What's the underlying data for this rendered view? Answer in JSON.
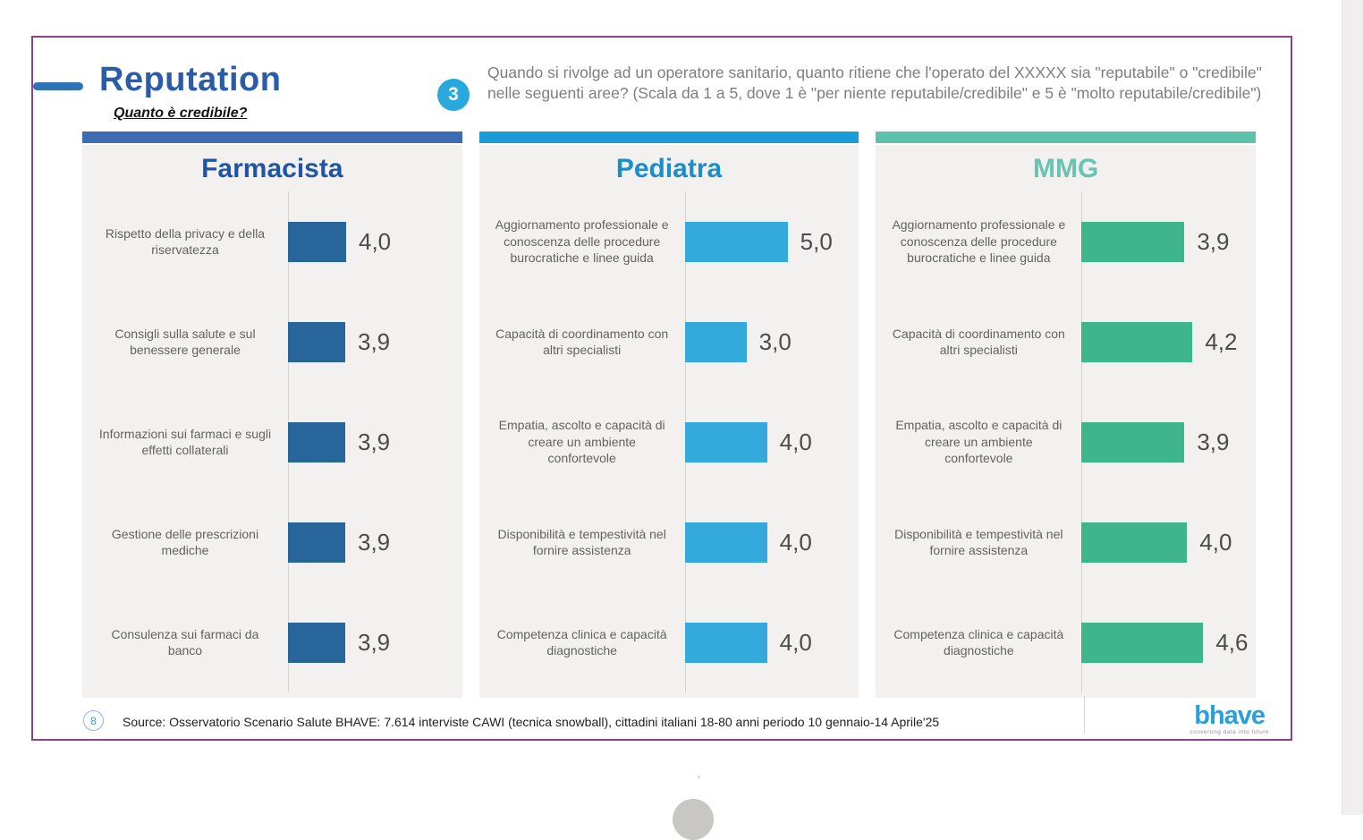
{
  "header": {
    "title": "Reputation",
    "subtitle": "Quanto è credibile?",
    "question_number": "3",
    "question_text": "Quando si rivolge ad un operatore sanitario, quanto ritiene che l'operato del XXXXX sia \"reputabile\" o \"credibile\" nelle seguenti aree? (Scala da 1 a 5, dove 1 è \"per niente reputabile/credibile\" e 5 è \"molto reputabile/credibile\")"
  },
  "chart_data": [
    {
      "type": "bar",
      "orientation": "horizontal",
      "title": "Farmacista",
      "xlim": [
        0,
        5
      ],
      "categories": [
        "Rispetto della privacy e della riservatezza",
        "Consigli sulla salute e sul benessere generale",
        "Informazioni sui farmaci e sugli effetti collaterali",
        "Gestione delle prescrizioni mediche",
        "Consulenza sui farmaci da banco"
      ],
      "values": [
        4.0,
        3.9,
        3.9,
        3.9,
        3.9
      ],
      "value_labels": [
        "4,0",
        "3,9",
        "3,9",
        "3,9",
        "3,9"
      ],
      "header_color": "#3e6cb3",
      "title_color": "#2155a4",
      "bar_color": "#28659a"
    },
    {
      "type": "bar",
      "orientation": "horizontal",
      "title": "Pediatra",
      "xlim": [
        0,
        5
      ],
      "categories": [
        "Aggiornamento professionale e conoscenza delle procedure burocratiche e linee guida",
        "Capacità di coordinamento con altri specialisti",
        "Empatia, ascolto e capacità di creare un ambiente confortevole",
        "Disponibilità e tempestività nel fornire assistenza",
        "Competenza clinica e capacità diagnostiche"
      ],
      "values": [
        5.0,
        3.0,
        4.0,
        4.0,
        4.0
      ],
      "value_labels": [
        "5,0",
        "3,0",
        "4,0",
        "4,0",
        "4,0"
      ],
      "header_color": "#1a9cd8",
      "title_color": "#1b8ec9",
      "bar_color": "#33a9dc"
    },
    {
      "type": "bar",
      "orientation": "horizontal",
      "title": "MMG",
      "xlim": [
        0,
        5
      ],
      "categories": [
        "Aggiornamento professionale e conoscenza delle procedure burocratiche e linee guida",
        "Capacità di coordinamento con altri specialisti",
        "Empatia, ascolto e capacità di creare un ambiente confortevole",
        "Disponibilità e tempestività nel fornire assistenza",
        "Competenza clinica e capacità diagnostiche"
      ],
      "values": [
        3.9,
        4.2,
        3.9,
        4.0,
        4.6
      ],
      "value_labels": [
        "3,9",
        "4,2",
        "3,9",
        "4,0",
        "4,6"
      ],
      "header_color": "#5ec1ab",
      "title_color": "#68c4af",
      "bar_color": "#3eb58c"
    }
  ],
  "footer": {
    "page_number": "8",
    "source": "Source: Osservatorio Scenario Salute BHAVE: 7.614 interviste CAWI (tecnica snowball), cittadini italiani 18-80 anni periodo 10 gennaio-14 Aprile'25",
    "logo_text": "bhave",
    "logo_tagline": "converting data into future"
  },
  "artifacts": {
    "stray_mark": "'"
  },
  "colors": {
    "slide_border": "#8a4190",
    "accent_dash": "#2e74b5",
    "title_blue": "#2b5ca8",
    "badge_blue": "#29a8dc",
    "question_gray": "#7e7e7e",
    "panel_background": "#f2f1ef"
  }
}
